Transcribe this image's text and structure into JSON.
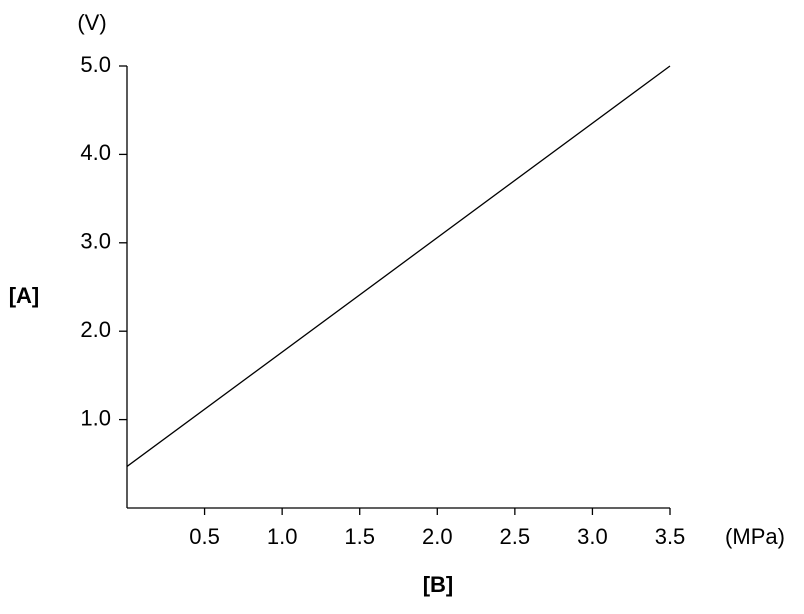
{
  "chart_data": {
    "type": "line",
    "y_unit": "(V)",
    "x_unit": "(MPa)",
    "y_label": "[A]",
    "x_label": "[B]",
    "x": [
      0,
      3.5
    ],
    "values": [
      0.47,
      5.0
    ],
    "color": "#000000",
    "xlim": [
      0,
      3.5
    ],
    "ylim": [
      0,
      5.0
    ],
    "xticks": [
      0.5,
      {
        "value": 1.0,
        "label": "1.0"
      },
      1.5,
      {
        "value": 2.0,
        "label": "2.0"
      },
      2.5,
      {
        "value": 3.0,
        "label": "3.0"
      },
      3.5
    ],
    "yticks": [
      {
        "value": 1.0,
        "label": "1.0"
      },
      {
        "value": 2.0,
        "label": "2.0"
      },
      {
        "value": 3.0,
        "label": "3.0"
      },
      {
        "value": 4.0,
        "label": "4.0"
      },
      {
        "value": 5.0,
        "label": "5.0"
      }
    ]
  }
}
